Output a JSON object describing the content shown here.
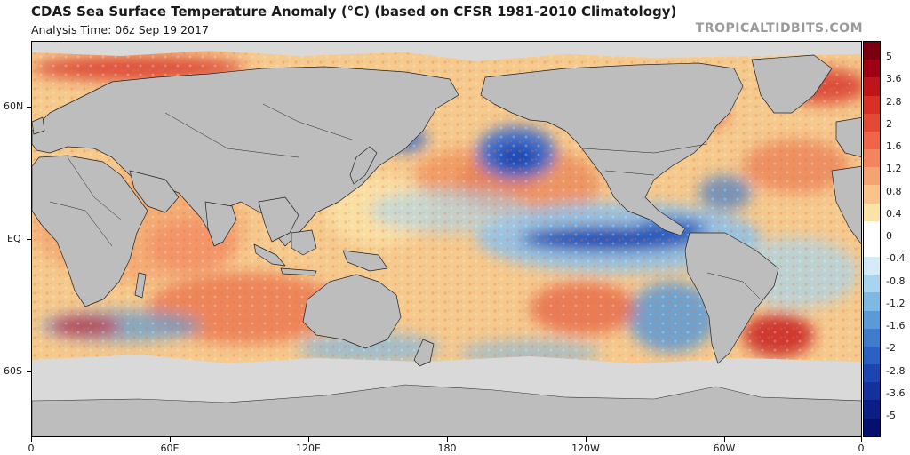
{
  "header": {
    "title": "CDAS Sea Surface Temperature Anomaly (°C) (based on CFSR 1981-2010 Climatology)",
    "analysis_time": "Analysis Time: 06z Sep 19 2017",
    "credit": "TROPICALTIDBITS.COM"
  },
  "axes": {
    "lat_labels": [
      "60N",
      "EQ",
      "60S"
    ],
    "lon_labels": [
      "0",
      "60E",
      "120E",
      "180",
      "120W",
      "60W",
      "0"
    ]
  },
  "colorbar": {
    "labels": [
      "5",
      "3.6",
      "2.8",
      "2",
      "1.6",
      "1.2",
      "0.8",
      "0.4",
      "0",
      "-0.4",
      "-0.8",
      "-1.2",
      "-1.6",
      "-2",
      "-2.8",
      "-3.6",
      "-5"
    ],
    "colors": [
      "#7a0010",
      "#9e0014",
      "#be151c",
      "#d73027",
      "#e34a33",
      "#ef6548",
      "#f4845f",
      "#f6a374",
      "#f9c38a",
      "#fbe3a8",
      "#ffffff",
      "#ffffff",
      "#d4ecf7",
      "#a7d4ee",
      "#7fb8e3",
      "#5a9ad6",
      "#3f7ccc",
      "#2c60c2",
      "#1d44b2",
      "#13309c",
      "#0a1f86",
      "#041070"
    ]
  },
  "map": {
    "land_color": "#bdbdbd",
    "ice_color": "#d9d9d9",
    "ocean_base": "#f6c98c"
  }
}
